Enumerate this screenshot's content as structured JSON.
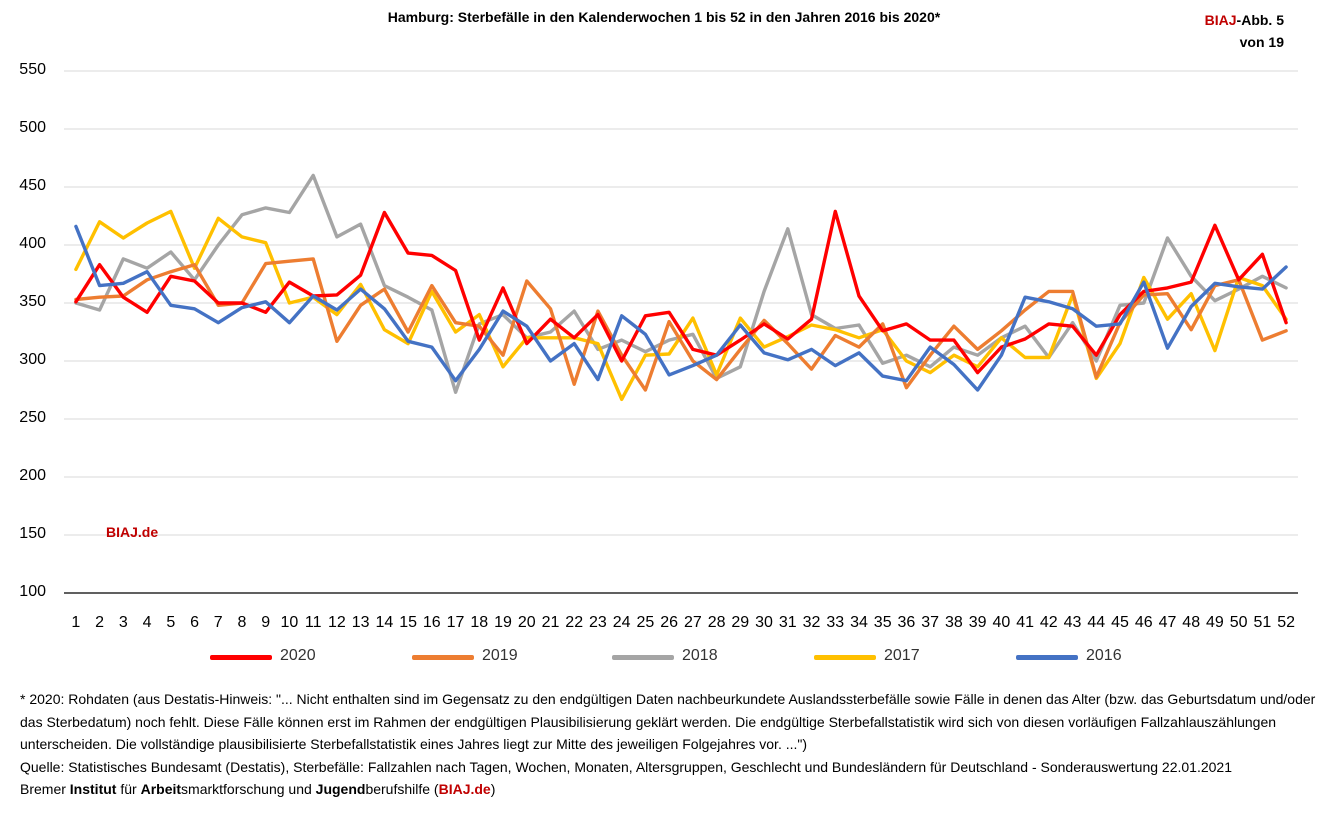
{
  "chart_data": {
    "type": "line",
    "title": "Hamburg: Sterbefälle in den Kalenderwochen 1 bis 52 in den Jahren 2016 bis 2020*",
    "xlabel": "",
    "ylabel": "",
    "ylim": [
      100,
      550
    ],
    "yticks": [
      "550",
      "500",
      "450",
      "400",
      "350",
      "300",
      "250",
      "200",
      "150",
      "100"
    ],
    "ytick_values": [
      550,
      500,
      450,
      400,
      350,
      300,
      250,
      200,
      150,
      100
    ],
    "x": [
      "1",
      "2",
      "3",
      "4",
      "5",
      "6",
      "7",
      "8",
      "9",
      "10",
      "11",
      "12",
      "13",
      "14",
      "15",
      "16",
      "17",
      "18",
      "19",
      "20",
      "21",
      "22",
      "23",
      "24",
      "25",
      "26",
      "27",
      "28",
      "29",
      "30",
      "31",
      "32",
      "33",
      "34",
      "35",
      "36",
      "37",
      "38",
      "39",
      "40",
      "41",
      "42",
      "43",
      "44",
      "45",
      "46",
      "47",
      "48",
      "49",
      "50",
      "51",
      "52"
    ],
    "grid": true,
    "legend_position": "bottom",
    "series": [
      {
        "name": "2018",
        "color": "#a5a5a5",
        "values": [
          350,
          344,
          388,
          380,
          394,
          370,
          400,
          426,
          432,
          428,
          460,
          407,
          418,
          365,
          355,
          344,
          273,
          332,
          340,
          320,
          325,
          343,
          310,
          318,
          308,
          318,
          323,
          285,
          295,
          360,
          414,
          340,
          328,
          331,
          298,
          305,
          295,
          312,
          305,
          320,
          330,
          303,
          333,
          300,
          348,
          350,
          406,
          373,
          352,
          362,
          373,
          363
        ]
      },
      {
        "name": "2017",
        "color": "#ffc000",
        "values": [
          379,
          420,
          406,
          419,
          429,
          380,
          423,
          407,
          402,
          350,
          355,
          340,
          366,
          327,
          315,
          360,
          325,
          340,
          295,
          320,
          320,
          320,
          315,
          267,
          305,
          306,
          337,
          288,
          337,
          312,
          321,
          331,
          327,
          320,
          327,
          300,
          290,
          305,
          295,
          320,
          303,
          303,
          357,
          285,
          315,
          372,
          336,
          358,
          309,
          372,
          365,
          336
        ]
      },
      {
        "name": "2019",
        "color": "#ed7d31",
        "values": [
          353,
          355,
          356,
          370,
          377,
          383,
          348,
          350,
          384,
          386,
          388,
          317,
          348,
          362,
          325,
          365,
          333,
          330,
          305,
          369,
          345,
          280,
          343,
          305,
          275,
          334,
          300,
          284,
          310,
          335,
          315,
          293,
          322,
          312,
          332,
          277,
          305,
          330,
          310,
          326,
          344,
          360,
          360,
          286,
          333,
          357,
          358,
          327,
          365,
          370,
          318,
          326
        ]
      },
      {
        "name": "2020",
        "color": "#ff0000",
        "values": [
          351,
          383,
          355,
          342,
          373,
          369,
          350,
          350,
          342,
          368,
          356,
          357,
          374,
          428,
          393,
          391,
          378,
          318,
          363,
          315,
          336,
          320,
          340,
          300,
          339,
          342,
          310,
          305,
          318,
          332,
          319,
          336,
          429,
          356,
          326,
          332,
          318,
          318,
          290,
          312,
          319,
          332,
          330,
          305,
          340,
          360,
          363,
          368,
          417,
          370,
          392,
          333
        ]
      },
      {
        "name": "2016",
        "color": "#4472c4",
        "values": [
          416,
          365,
          367,
          377,
          348,
          345,
          333,
          346,
          351,
          333,
          356,
          344,
          362,
          345,
          317,
          312,
          283,
          310,
          343,
          330,
          300,
          315,
          284,
          339,
          323,
          288,
          296,
          305,
          331,
          307,
          301,
          310,
          296,
          307,
          287,
          283,
          312,
          297,
          275,
          305,
          355,
          351,
          345,
          330,
          332,
          368,
          311,
          347,
          367,
          364,
          362,
          381
        ]
      }
    ],
    "legend": [
      {
        "name": "2020",
        "color": "#ff0000"
      },
      {
        "name": "2019",
        "color": "#ed7d31"
      },
      {
        "name": "2018",
        "color": "#a5a5a5"
      },
      {
        "name": "2017",
        "color": "#ffc000"
      },
      {
        "name": "2016",
        "color": "#4472c4"
      }
    ]
  },
  "badge": {
    "brand": "BIAJ",
    "rest": "-Abb. 5",
    "line2": "von 19"
  },
  "watermark": "BIAJ.de",
  "footnote": {
    "line1": "* 2020: Rohdaten (aus Destatis-Hinweis: \"... Nicht enthalten sind im Gegensatz zu den endgültigen Daten nachbeurkundete Auslandssterbefälle sowie Fälle in denen das Alter (bzw. das Geburtsdatum und/oder das Sterbedatum) noch fehlt. Diese Fälle können erst im Rahmen der endgültigen Plausibilisierung geklärt werden. Die endgültige Sterbefallstatistik wird sich von diesen vorläufigen Fallzahlauszählungen unterscheiden. Die vollständige plausibilisierte Sterbefallstatistik eines Jahres liegt zur Mitte des jeweiligen Folgejahres vor. ...\")",
    "line2": "Quelle: Statistisches Bundesamt (Destatis), Sterbefälle: Fallzahlen nach Tagen, Wochen, Monaten, Altersgruppen, Geschlecht und Bundesländern für Deutschland - Sonderauswertung 22.01.2021",
    "credit_parts": [
      "Bremer ",
      "Institut",
      " für ",
      "Arbeit",
      "smarktforschung und ",
      "Jugend",
      "berufshilfe (",
      "BIAJ.de",
      ")"
    ]
  }
}
